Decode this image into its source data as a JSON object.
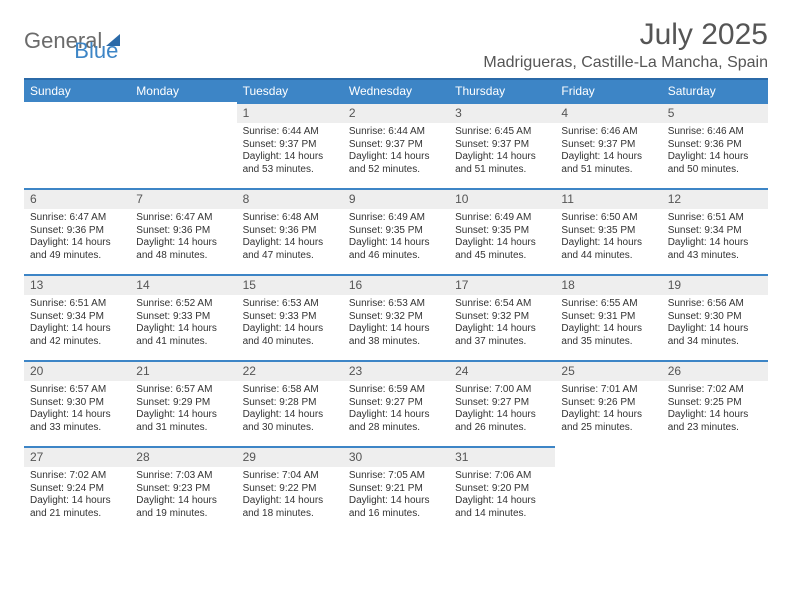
{
  "brand": {
    "part1": "General",
    "part2": "Blue"
  },
  "title": {
    "month": "July 2025",
    "location": "Madrigueras, Castille-La Mancha, Spain"
  },
  "colors": {
    "header_bg": "#3d85c6",
    "header_border": "#2b6aa8",
    "daynum_bg": "#eeeeee",
    "text": "#333333"
  },
  "weekdays": [
    "Sunday",
    "Monday",
    "Tuesday",
    "Wednesday",
    "Thursday",
    "Friday",
    "Saturday"
  ],
  "weeks": [
    [
      {
        "n": "",
        "sr": "",
        "ss": "",
        "dl1": "",
        "dl2": ""
      },
      {
        "n": "",
        "sr": "",
        "ss": "",
        "dl1": "",
        "dl2": ""
      },
      {
        "n": "1",
        "sr": "Sunrise: 6:44 AM",
        "ss": "Sunset: 9:37 PM",
        "dl1": "Daylight: 14 hours",
        "dl2": "and 53 minutes."
      },
      {
        "n": "2",
        "sr": "Sunrise: 6:44 AM",
        "ss": "Sunset: 9:37 PM",
        "dl1": "Daylight: 14 hours",
        "dl2": "and 52 minutes."
      },
      {
        "n": "3",
        "sr": "Sunrise: 6:45 AM",
        "ss": "Sunset: 9:37 PM",
        "dl1": "Daylight: 14 hours",
        "dl2": "and 51 minutes."
      },
      {
        "n": "4",
        "sr": "Sunrise: 6:46 AM",
        "ss": "Sunset: 9:37 PM",
        "dl1": "Daylight: 14 hours",
        "dl2": "and 51 minutes."
      },
      {
        "n": "5",
        "sr": "Sunrise: 6:46 AM",
        "ss": "Sunset: 9:36 PM",
        "dl1": "Daylight: 14 hours",
        "dl2": "and 50 minutes."
      }
    ],
    [
      {
        "n": "6",
        "sr": "Sunrise: 6:47 AM",
        "ss": "Sunset: 9:36 PM",
        "dl1": "Daylight: 14 hours",
        "dl2": "and 49 minutes."
      },
      {
        "n": "7",
        "sr": "Sunrise: 6:47 AM",
        "ss": "Sunset: 9:36 PM",
        "dl1": "Daylight: 14 hours",
        "dl2": "and 48 minutes."
      },
      {
        "n": "8",
        "sr": "Sunrise: 6:48 AM",
        "ss": "Sunset: 9:36 PM",
        "dl1": "Daylight: 14 hours",
        "dl2": "and 47 minutes."
      },
      {
        "n": "9",
        "sr": "Sunrise: 6:49 AM",
        "ss": "Sunset: 9:35 PM",
        "dl1": "Daylight: 14 hours",
        "dl2": "and 46 minutes."
      },
      {
        "n": "10",
        "sr": "Sunrise: 6:49 AM",
        "ss": "Sunset: 9:35 PM",
        "dl1": "Daylight: 14 hours",
        "dl2": "and 45 minutes."
      },
      {
        "n": "11",
        "sr": "Sunrise: 6:50 AM",
        "ss": "Sunset: 9:35 PM",
        "dl1": "Daylight: 14 hours",
        "dl2": "and 44 minutes."
      },
      {
        "n": "12",
        "sr": "Sunrise: 6:51 AM",
        "ss": "Sunset: 9:34 PM",
        "dl1": "Daylight: 14 hours",
        "dl2": "and 43 minutes."
      }
    ],
    [
      {
        "n": "13",
        "sr": "Sunrise: 6:51 AM",
        "ss": "Sunset: 9:34 PM",
        "dl1": "Daylight: 14 hours",
        "dl2": "and 42 minutes."
      },
      {
        "n": "14",
        "sr": "Sunrise: 6:52 AM",
        "ss": "Sunset: 9:33 PM",
        "dl1": "Daylight: 14 hours",
        "dl2": "and 41 minutes."
      },
      {
        "n": "15",
        "sr": "Sunrise: 6:53 AM",
        "ss": "Sunset: 9:33 PM",
        "dl1": "Daylight: 14 hours",
        "dl2": "and 40 minutes."
      },
      {
        "n": "16",
        "sr": "Sunrise: 6:53 AM",
        "ss": "Sunset: 9:32 PM",
        "dl1": "Daylight: 14 hours",
        "dl2": "and 38 minutes."
      },
      {
        "n": "17",
        "sr": "Sunrise: 6:54 AM",
        "ss": "Sunset: 9:32 PM",
        "dl1": "Daylight: 14 hours",
        "dl2": "and 37 minutes."
      },
      {
        "n": "18",
        "sr": "Sunrise: 6:55 AM",
        "ss": "Sunset: 9:31 PM",
        "dl1": "Daylight: 14 hours",
        "dl2": "and 35 minutes."
      },
      {
        "n": "19",
        "sr": "Sunrise: 6:56 AM",
        "ss": "Sunset: 9:30 PM",
        "dl1": "Daylight: 14 hours",
        "dl2": "and 34 minutes."
      }
    ],
    [
      {
        "n": "20",
        "sr": "Sunrise: 6:57 AM",
        "ss": "Sunset: 9:30 PM",
        "dl1": "Daylight: 14 hours",
        "dl2": "and 33 minutes."
      },
      {
        "n": "21",
        "sr": "Sunrise: 6:57 AM",
        "ss": "Sunset: 9:29 PM",
        "dl1": "Daylight: 14 hours",
        "dl2": "and 31 minutes."
      },
      {
        "n": "22",
        "sr": "Sunrise: 6:58 AM",
        "ss": "Sunset: 9:28 PM",
        "dl1": "Daylight: 14 hours",
        "dl2": "and 30 minutes."
      },
      {
        "n": "23",
        "sr": "Sunrise: 6:59 AM",
        "ss": "Sunset: 9:27 PM",
        "dl1": "Daylight: 14 hours",
        "dl2": "and 28 minutes."
      },
      {
        "n": "24",
        "sr": "Sunrise: 7:00 AM",
        "ss": "Sunset: 9:27 PM",
        "dl1": "Daylight: 14 hours",
        "dl2": "and 26 minutes."
      },
      {
        "n": "25",
        "sr": "Sunrise: 7:01 AM",
        "ss": "Sunset: 9:26 PM",
        "dl1": "Daylight: 14 hours",
        "dl2": "and 25 minutes."
      },
      {
        "n": "26",
        "sr": "Sunrise: 7:02 AM",
        "ss": "Sunset: 9:25 PM",
        "dl1": "Daylight: 14 hours",
        "dl2": "and 23 minutes."
      }
    ],
    [
      {
        "n": "27",
        "sr": "Sunrise: 7:02 AM",
        "ss": "Sunset: 9:24 PM",
        "dl1": "Daylight: 14 hours",
        "dl2": "and 21 minutes."
      },
      {
        "n": "28",
        "sr": "Sunrise: 7:03 AM",
        "ss": "Sunset: 9:23 PM",
        "dl1": "Daylight: 14 hours",
        "dl2": "and 19 minutes."
      },
      {
        "n": "29",
        "sr": "Sunrise: 7:04 AM",
        "ss": "Sunset: 9:22 PM",
        "dl1": "Daylight: 14 hours",
        "dl2": "and 18 minutes."
      },
      {
        "n": "30",
        "sr": "Sunrise: 7:05 AM",
        "ss": "Sunset: 9:21 PM",
        "dl1": "Daylight: 14 hours",
        "dl2": "and 16 minutes."
      },
      {
        "n": "31",
        "sr": "Sunrise: 7:06 AM",
        "ss": "Sunset: 9:20 PM",
        "dl1": "Daylight: 14 hours",
        "dl2": "and 14 minutes."
      },
      {
        "n": "",
        "sr": "",
        "ss": "",
        "dl1": "",
        "dl2": ""
      },
      {
        "n": "",
        "sr": "",
        "ss": "",
        "dl1": "",
        "dl2": ""
      }
    ]
  ]
}
